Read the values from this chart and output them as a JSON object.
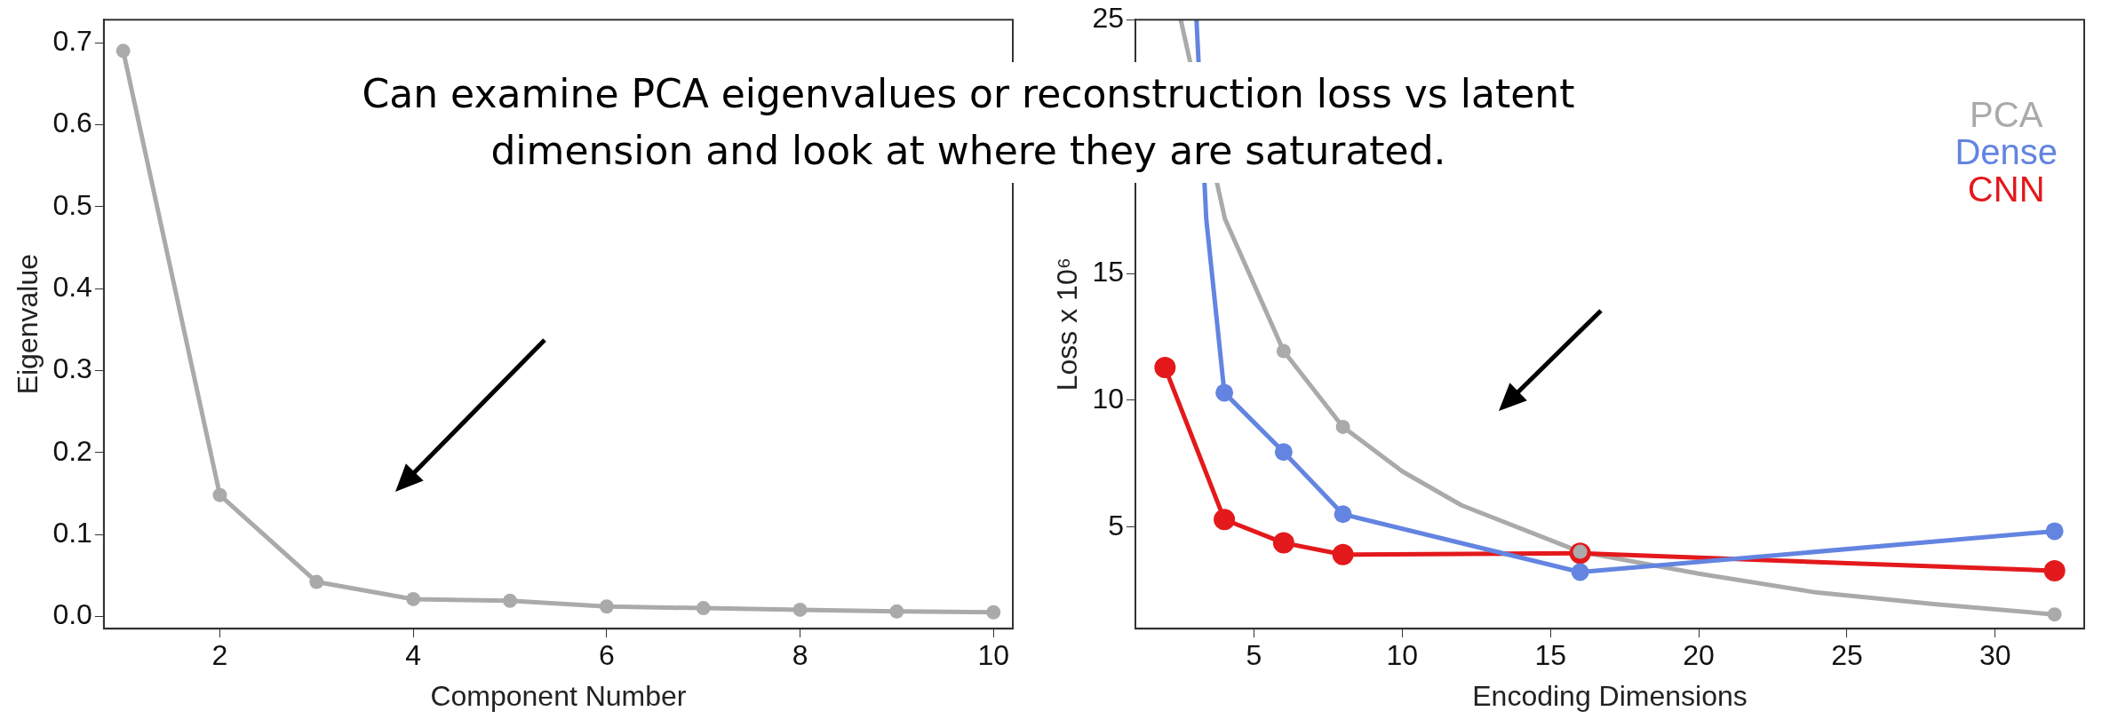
{
  "chart_data": [
    {
      "type": "line",
      "xlabel": "Component Number",
      "ylabel": "Eigenvalue",
      "xlim": [
        0.8,
        10.2
      ],
      "ylim": [
        -0.015,
        0.728
      ],
      "xticks": [
        2,
        4,
        6,
        8,
        10
      ],
      "yticks": [
        {
          "value": 0,
          "label": "0.0"
        },
        0.1,
        0.2,
        0.3,
        0.4,
        0.5,
        0.6,
        0.7
      ],
      "marker": "circle",
      "line_style": "solid",
      "annotations": [
        "Can examine PCA eigenvalues or reconstruction loss vs latent dimension and look at where they are saturated."
      ],
      "series": [
        {
          "color": "#aaaaaa",
          "x": [
            1,
            2,
            3,
            4,
            5,
            6,
            7,
            8,
            9,
            10
          ],
          "values": [
            0.69,
            0.148,
            0.042,
            0.021,
            0.019,
            0.012,
            0.01,
            0.008,
            0.006,
            0.005
          ]
        }
      ]
    },
    {
      "type": "line",
      "xlabel": "Encoding Dimensions",
      "ylabel": "Loss x 10⁶",
      "xlim": [
        1,
        33
      ],
      "ylim": [
        1,
        25
      ],
      "xticks": [
        5,
        10,
        15,
        20,
        25,
        30
      ],
      "yticks": [
        5,
        10,
        15,
        25
      ],
      "marker": "circle",
      "line_style": "solid",
      "legend": "top right",
      "series": [
        {
          "name": "PCA",
          "type": "scatter",
          "color": "#aaaaaa",
          "x": [
            6,
            8,
            16,
            32
          ],
          "values": [
            11.94,
            8.95,
            4.03,
            1.56
          ]
        },
        {
          "name": "Dense",
          "color": "#6384e0",
          "x": [
            4,
            6,
            8,
            16,
            32
          ],
          "values": [
            10.3,
            7.96,
            5.51,
            3.23,
            4.84
          ]
        },
        {
          "name": "CNN",
          "color": "#e3191c",
          "x": [
            2,
            4,
            6,
            8,
            16,
            32
          ],
          "values": [
            11.29,
            5.3,
            4.38,
            3.92,
            3.97,
            3.28
          ]
        },
        {
          "color": "#aaaaaa",
          "marker": "none",
          "x": [
            2.53,
            4.02,
            6,
            8,
            10,
            12,
            16,
            20,
            24,
            28,
            32
          ],
          "values": [
            25,
            17.15,
            11.94,
            8.95,
            7.2,
            5.86,
            4.03,
            3.17,
            2.42,
            1.96,
            1.56
          ]
        },
        {
          "color": "#6384e0",
          "marker": "none",
          "x": [
            3.06,
            3.39,
            4
          ],
          "values": [
            25,
            17.15,
            10.3
          ]
        }
      ]
    }
  ]
}
